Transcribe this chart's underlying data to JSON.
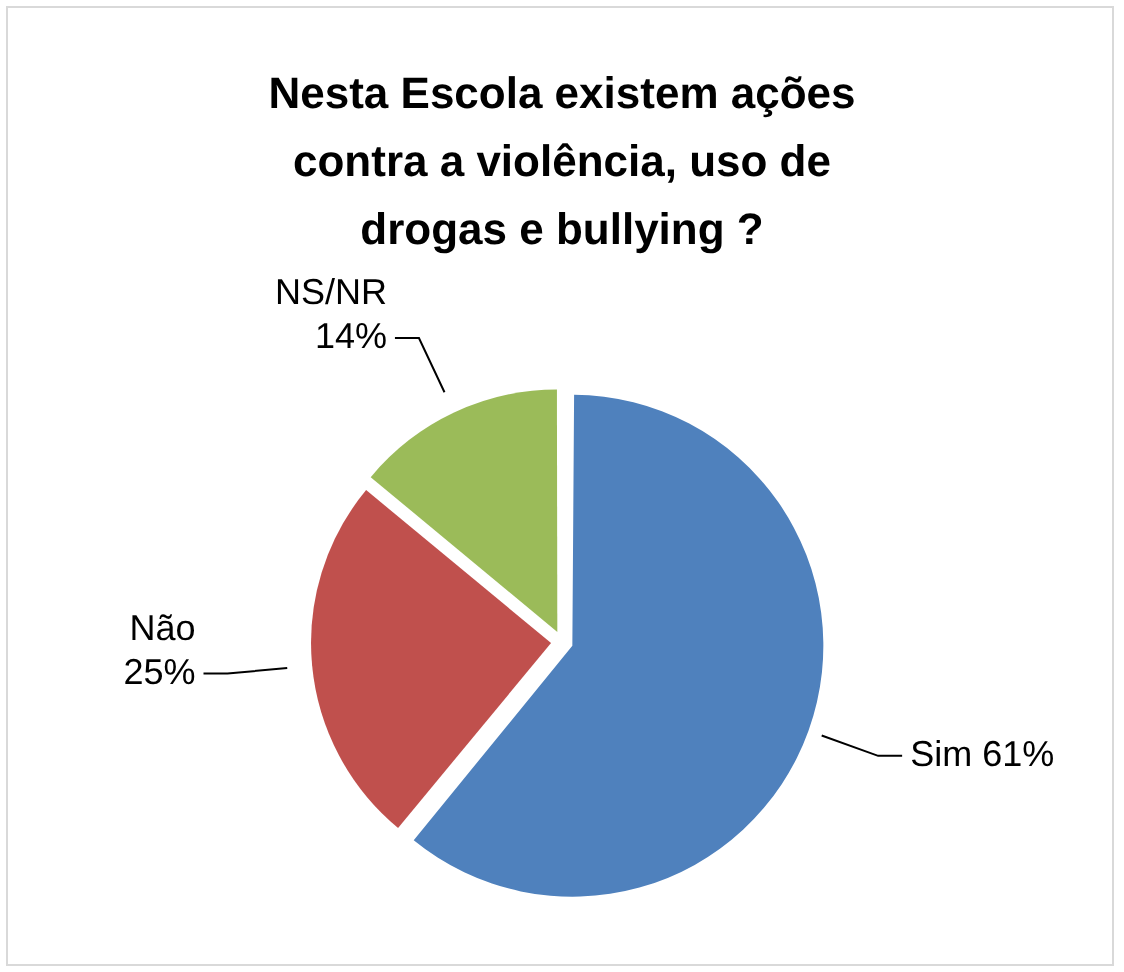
{
  "chart_data": {
    "type": "pie",
    "title": "Nesta Escola existem ações contra a violência, uso de drogas e bullying ?",
    "categories": [
      "Sim",
      "Não",
      "NS/NR"
    ],
    "values": [
      61,
      25,
      14
    ],
    "value_labels": [
      "61%",
      "25%",
      "14%"
    ],
    "colors": [
      "#4f81bd",
      "#c0504d",
      "#9bbb59"
    ],
    "legend": false
  }
}
